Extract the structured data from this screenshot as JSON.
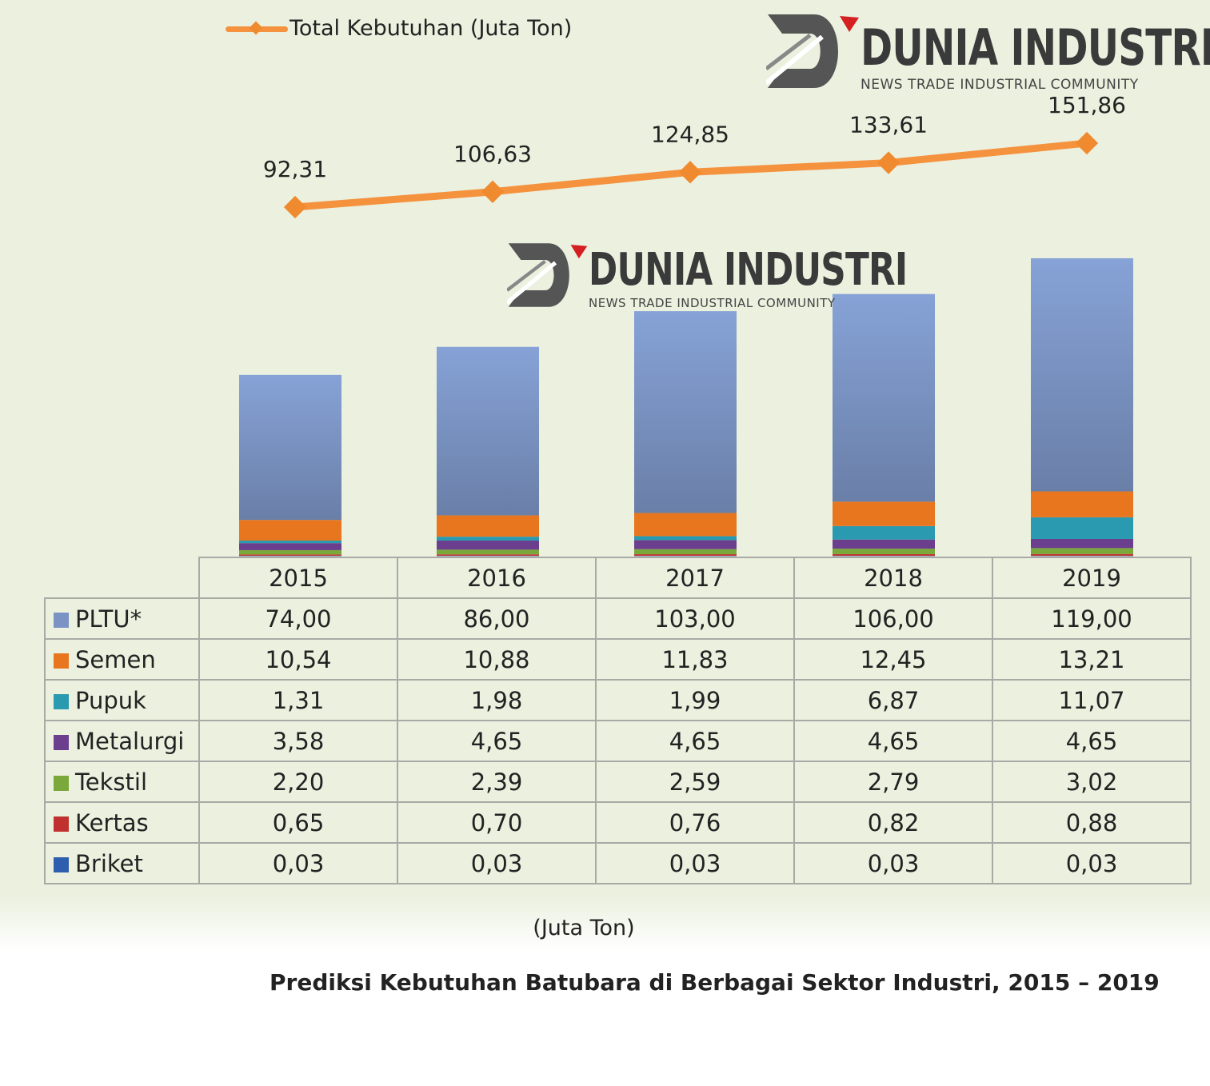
{
  "chart_data": {
    "type": "bar",
    "stacked": true,
    "title": "Prediksi Kebutuhan Batubara di Berbagai Sektor Industri, 2015 – 2019",
    "unit_label": "(Juta Ton)",
    "categories": [
      "2015",
      "2016",
      "2017",
      "2018",
      "2019"
    ],
    "series": [
      {
        "name": "PLTU*",
        "color": "#7a93c4",
        "values": [
          "74,00",
          "86,00",
          "103,00",
          "106,00",
          "119,00"
        ]
      },
      {
        "name": "Semen",
        "color": "#e8761e",
        "values": [
          "10,54",
          "10,88",
          "11,83",
          "12,45",
          "13,21"
        ]
      },
      {
        "name": "Pupuk",
        "color": "#2a9ab0",
        "values": [
          "1,31",
          "1,98",
          "1,99",
          "6,87",
          "11,07"
        ]
      },
      {
        "name": "Metalurgi",
        "color": "#6b3e8e",
        "values": [
          "3,58",
          "4,65",
          "4,65",
          "4,65",
          "4,65"
        ]
      },
      {
        "name": "Tekstil",
        "color": "#7aa83a",
        "values": [
          "2,20",
          "2,39",
          "2,59",
          "2,79",
          "3,02"
        ]
      },
      {
        "name": "Kertas",
        "color": "#c0302e",
        "values": [
          "0,65",
          "0,70",
          "0,76",
          "0,82",
          "0,88"
        ]
      },
      {
        "name": "Briket",
        "color": "#2e5fae",
        "values": [
          "0,03",
          "0,03",
          "0,03",
          "0,03",
          "0,03"
        ]
      }
    ],
    "line": {
      "name": "Total Kebutuhan (Juta Ton)",
      "color": "#f5923e",
      "values": [
        "92,31",
        "106,63",
        "124,85",
        "133,61",
        "151,86"
      ]
    },
    "legend": "top-left",
    "grid": false
  },
  "watermark": {
    "name": "DUNIA INDUSTRI",
    "tagline": "NEWS TRADE INDUSTRIAL COMMUNITY"
  },
  "colors": {
    "background": "#ebf0df"
  }
}
